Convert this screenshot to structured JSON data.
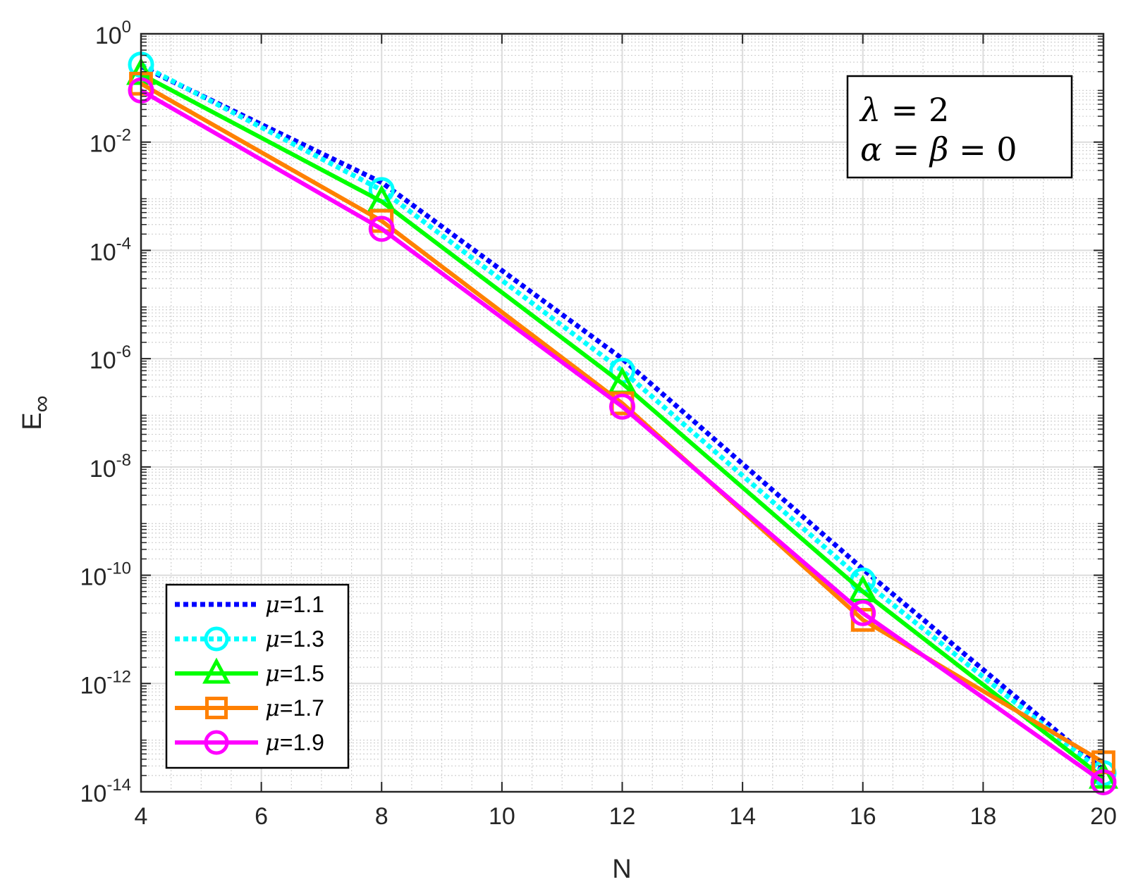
{
  "chart_data": {
    "type": "line",
    "xlabel": "N",
    "ylabel": "E",
    "ylabel_sub": "∞",
    "x": [
      4,
      8,
      12,
      16,
      20
    ],
    "xlim": [
      4,
      20
    ],
    "xticks": [
      4,
      6,
      8,
      10,
      12,
      14,
      16,
      18,
      20
    ],
    "yscale": "log",
    "ylim": [
      1e-14,
      1
    ],
    "yticks": [
      {
        "base": "10",
        "exp": "0",
        "value": 1
      },
      {
        "base": "10",
        "exp": "-2",
        "value": 0.01
      },
      {
        "base": "10",
        "exp": "-4",
        "value": 0.0001
      },
      {
        "base": "10",
        "exp": "-6",
        "value": 1e-06
      },
      {
        "base": "10",
        "exp": "-8",
        "value": 1e-08
      },
      {
        "base": "10",
        "exp": "-10",
        "value": 1e-10
      },
      {
        "base": "10",
        "exp": "-12",
        "value": 1e-12
      },
      {
        "base": "10",
        "exp": "-14",
        "value": 1e-14
      }
    ],
    "grid": true,
    "legend_position": "bottom-left",
    "series": [
      {
        "name": "μ=1.1",
        "sym": "μ",
        "val": "=1.1",
        "color": "#0000ff",
        "dash": "dotted",
        "marker": "none",
        "values": [
          0.25,
          0.0018,
          1e-06,
          1.3e-10,
          2.5e-14
        ]
      },
      {
        "name": "μ=1.3",
        "sym": "μ",
        "val": "=1.3",
        "color": "#00ffff",
        "dash": "dotted",
        "marker": "circle",
        "values": [
          0.27,
          0.0013,
          6e-07,
          8e-11,
          2.2e-14
        ]
      },
      {
        "name": "μ=1.5",
        "sym": "μ",
        "val": "=1.5",
        "color": "#00ff00",
        "dash": "solid",
        "marker": "triangle",
        "values": [
          0.18,
          0.0008,
          3.5e-07,
          5e-11,
          1.8e-14
        ]
      },
      {
        "name": "μ=1.7",
        "sym": "μ",
        "val": "=1.7",
        "color": "#ff8000",
        "dash": "solid",
        "marker": "square",
        "values": [
          0.12,
          0.00035,
          1.5e-07,
          1.5e-11,
          3.5e-14
        ]
      },
      {
        "name": "μ=1.9",
        "sym": "μ",
        "val": "=1.9",
        "color": "#ff00ff",
        "dash": "solid",
        "marker": "circle",
        "values": [
          0.09,
          0.00025,
          1.3e-07,
          2e-11,
          1.5e-14
        ]
      }
    ],
    "annotation": {
      "line1_var": "λ",
      "line1_rest": " = 2",
      "line2_a": "α",
      "line2_mid": " = ",
      "line2_b": "β",
      "line2_rest": " = 0"
    }
  }
}
